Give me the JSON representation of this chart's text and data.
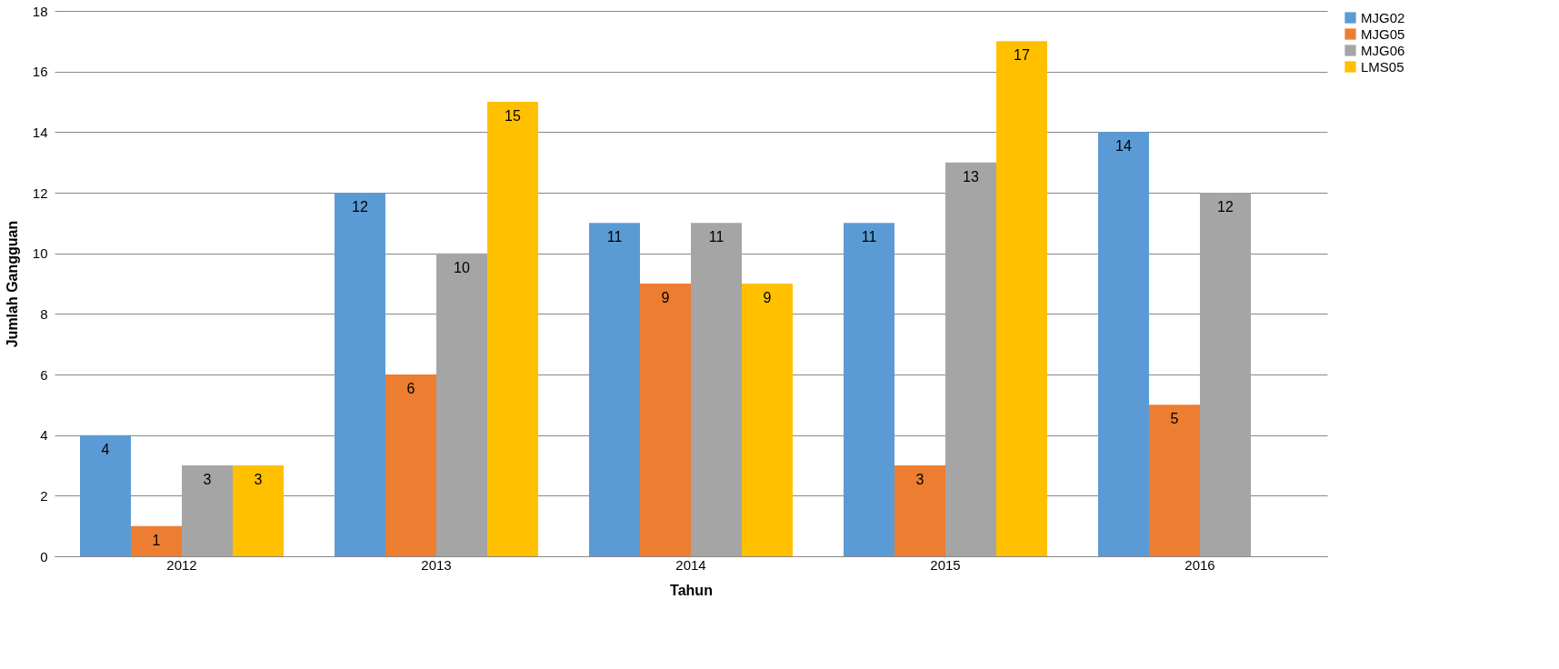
{
  "chart_data": {
    "type": "bar",
    "xlabel": "Tahun",
    "ylabel": "Jumlah Gangguan",
    "categories": [
      "2012",
      "2013",
      "2014",
      "2015",
      "2016"
    ],
    "series": [
      {
        "name": "MJG02",
        "color": "#5b9bd5",
        "values": [
          4,
          12,
          11,
          11,
          14
        ]
      },
      {
        "name": "MJG05",
        "color": "#ed7d31",
        "values": [
          1,
          6,
          9,
          3,
          5
        ]
      },
      {
        "name": "MJG06",
        "color": "#a5a5a5",
        "values": [
          3,
          10,
          11,
          13,
          12
        ]
      },
      {
        "name": "LMS05",
        "color": "#ffc000",
        "values": [
          3,
          15,
          9,
          17,
          null
        ]
      }
    ],
    "ylim": [
      0,
      18
    ],
    "yticks": [
      0,
      2,
      4,
      6,
      8,
      10,
      12,
      14,
      16,
      18
    ],
    "grid": "y",
    "legend": "right",
    "data_labels": true
  }
}
